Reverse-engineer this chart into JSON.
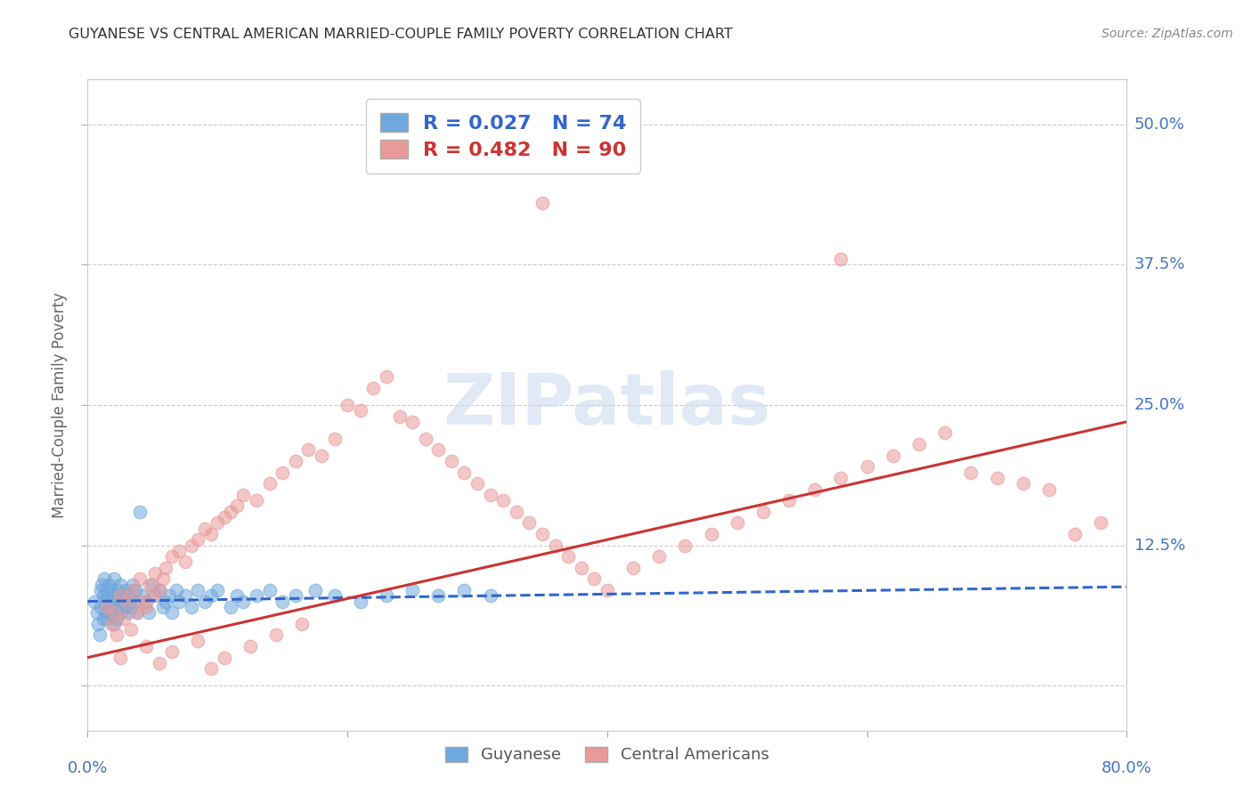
{
  "title": "GUYANESE VS CENTRAL AMERICAN MARRIED-COUPLE FAMILY POVERTY CORRELATION CHART",
  "source": "Source: ZipAtlas.com",
  "ylabel": "Married-Couple Family Poverty",
  "xlim": [
    0.0,
    0.8
  ],
  "ylim": [
    -0.04,
    0.54
  ],
  "yticks": [
    0.0,
    0.125,
    0.25,
    0.375,
    0.5
  ],
  "yticklabels_right": [
    "",
    "12.5%",
    "25.0%",
    "37.5%",
    "50.0%"
  ],
  "blue_color": "#6fa8dc",
  "pink_color": "#ea9999",
  "blue_line_color": "#3366cc",
  "pink_line_color": "#cc3333",
  "R_blue": 0.027,
  "N_blue": 74,
  "R_pink": 0.482,
  "N_pink": 90,
  "blue_trend": [
    0.0,
    0.8,
    0.075,
    0.088
  ],
  "pink_trend": [
    0.0,
    0.8,
    0.025,
    0.235
  ],
  "blue_x": [
    0.005,
    0.007,
    0.008,
    0.009,
    0.01,
    0.01,
    0.011,
    0.012,
    0.012,
    0.013,
    0.013,
    0.014,
    0.014,
    0.015,
    0.015,
    0.016,
    0.017,
    0.018,
    0.018,
    0.019,
    0.02,
    0.02,
    0.021,
    0.022,
    0.022,
    0.023,
    0.024,
    0.025,
    0.026,
    0.027,
    0.028,
    0.029,
    0.03,
    0.031,
    0.032,
    0.033,
    0.035,
    0.036,
    0.037,
    0.038,
    0.04,
    0.042,
    0.045,
    0.047,
    0.05,
    0.052,
    0.055,
    0.058,
    0.06,
    0.063,
    0.065,
    0.068,
    0.07,
    0.075,
    0.08,
    0.085,
    0.09,
    0.095,
    0.1,
    0.11,
    0.115,
    0.12,
    0.13,
    0.14,
    0.15,
    0.16,
    0.175,
    0.19,
    0.21,
    0.23,
    0.25,
    0.27,
    0.29,
    0.31
  ],
  "blue_y": [
    0.075,
    0.065,
    0.055,
    0.045,
    0.085,
    0.07,
    0.09,
    0.08,
    0.06,
    0.095,
    0.075,
    0.085,
    0.065,
    0.08,
    0.06,
    0.09,
    0.07,
    0.085,
    0.065,
    0.075,
    0.095,
    0.055,
    0.08,
    0.07,
    0.06,
    0.085,
    0.075,
    0.09,
    0.065,
    0.08,
    0.07,
    0.085,
    0.075,
    0.065,
    0.08,
    0.07,
    0.09,
    0.075,
    0.085,
    0.065,
    0.155,
    0.08,
    0.075,
    0.065,
    0.09,
    0.08,
    0.085,
    0.07,
    0.075,
    0.08,
    0.065,
    0.085,
    0.075,
    0.08,
    0.07,
    0.085,
    0.075,
    0.08,
    0.085,
    0.07,
    0.08,
    0.075,
    0.08,
    0.085,
    0.075,
    0.08,
    0.085,
    0.08,
    0.075,
    0.08,
    0.085,
    0.08,
    0.085,
    0.08
  ],
  "pink_x": [
    0.015,
    0.018,
    0.02,
    0.022,
    0.025,
    0.028,
    0.03,
    0.033,
    0.035,
    0.038,
    0.04,
    0.042,
    0.045,
    0.048,
    0.05,
    0.052,
    0.055,
    0.058,
    0.06,
    0.065,
    0.07,
    0.075,
    0.08,
    0.085,
    0.09,
    0.095,
    0.1,
    0.105,
    0.11,
    0.115,
    0.12,
    0.13,
    0.14,
    0.15,
    0.16,
    0.17,
    0.18,
    0.19,
    0.2,
    0.21,
    0.22,
    0.23,
    0.24,
    0.25,
    0.26,
    0.27,
    0.28,
    0.29,
    0.3,
    0.31,
    0.32,
    0.33,
    0.34,
    0.35,
    0.36,
    0.37,
    0.38,
    0.39,
    0.4,
    0.42,
    0.44,
    0.46,
    0.48,
    0.5,
    0.52,
    0.54,
    0.56,
    0.58,
    0.6,
    0.62,
    0.64,
    0.66,
    0.68,
    0.7,
    0.72,
    0.74,
    0.76,
    0.78,
    0.35,
    0.58,
    0.025,
    0.045,
    0.055,
    0.065,
    0.085,
    0.095,
    0.105,
    0.125,
    0.145,
    0.165
  ],
  "pink_y": [
    0.07,
    0.055,
    0.065,
    0.045,
    0.08,
    0.06,
    0.075,
    0.05,
    0.085,
    0.065,
    0.095,
    0.075,
    0.07,
    0.09,
    0.08,
    0.1,
    0.085,
    0.095,
    0.105,
    0.115,
    0.12,
    0.11,
    0.125,
    0.13,
    0.14,
    0.135,
    0.145,
    0.15,
    0.155,
    0.16,
    0.17,
    0.165,
    0.18,
    0.19,
    0.2,
    0.21,
    0.205,
    0.22,
    0.25,
    0.245,
    0.265,
    0.275,
    0.24,
    0.235,
    0.22,
    0.21,
    0.2,
    0.19,
    0.18,
    0.17,
    0.165,
    0.155,
    0.145,
    0.135,
    0.125,
    0.115,
    0.105,
    0.095,
    0.085,
    0.105,
    0.115,
    0.125,
    0.135,
    0.145,
    0.155,
    0.165,
    0.175,
    0.185,
    0.195,
    0.205,
    0.215,
    0.225,
    0.19,
    0.185,
    0.18,
    0.175,
    0.135,
    0.145,
    0.43,
    0.38,
    0.025,
    0.035,
    0.02,
    0.03,
    0.04,
    0.015,
    0.025,
    0.035,
    0.045,
    0.055
  ]
}
